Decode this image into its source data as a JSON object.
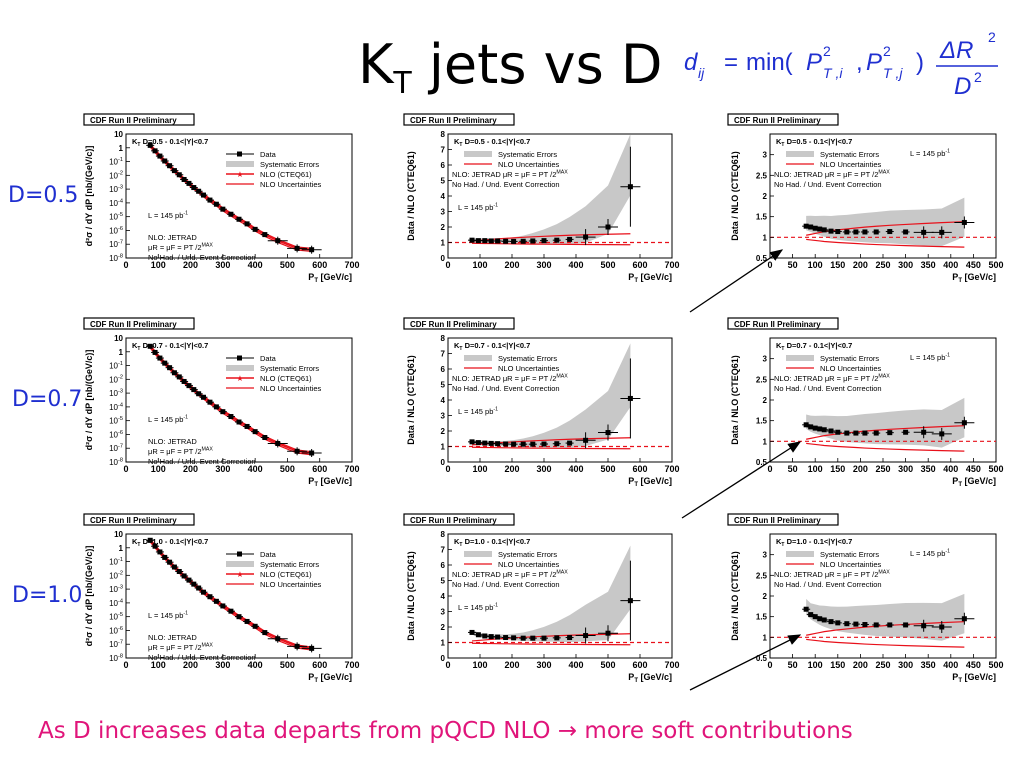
{
  "slide": {
    "title_main": "K",
    "title_sub": "T",
    "title_rest": " jets vs D",
    "formula": {
      "lhs": "d",
      "lhs_sub": "ij",
      "eq": "=",
      "fn": "min(",
      "p": "P",
      "sup2": "2",
      "sub_i": "T ,i",
      "sub_j": "T ,j",
      "comma": ",",
      "close": ")",
      "numerator": "ΔR",
      "num_sup": "2",
      "denominator": "D",
      "den_sup": "2"
    },
    "d_labels": [
      "D=0.5",
      "D=0.7",
      "D=1.0"
    ],
    "caption": "As D increases data departs from pQCD NLO → more soft contributions"
  },
  "panel_text": {
    "banner": "CDF Run II Preliminary",
    "legend_data": "Data",
    "legend_syst": "Systematic Errors",
    "legend_nlo": "NLO (CTEQ61)",
    "legend_nlo_unc": "NLO Uncertainties",
    "lumi": "L = 145 pb",
    "lumi_sup": "-1",
    "nlo_line1": "NLO: JETRAD",
    "nlo_line2": "μR = μF = P",
    "nlo_line2_sup": "MAX",
    "nlo_line2_sub": "T",
    "nlo_line2_end": "/2",
    "nohad": "No Had. / Und. Event Correction",
    "ratio_nlo_line": "NLO: JETRAD  μR = μF = P",
    "xlabel": "P",
    "xlabel_sub": "T",
    "xlabel_unit": " [GeV/c]",
    "ylabel_spectrum": "d²σ / dY dP  [nb/(GeV/c)]",
    "ylabel_spectrum_sub": "T",
    "ylabel_ratio": "Data / NLO (CTEQ61)"
  },
  "colors": {
    "title": "#000000",
    "d_label": "#1f2fd0",
    "caption": "#e0157a",
    "nlo": "#e8101a",
    "band": "#c8c8c8",
    "data": "#000000"
  },
  "chart_data": [
    {
      "row": 0,
      "col": 0,
      "type": "scatter",
      "header": "K  D=0.5 - 0.1<|Y|<0.7",
      "header_sub": "T",
      "xlabel": "P_T [GeV/c]",
      "ylabel": "d²σ/dY dP_T [nb/(GeV/c)]",
      "xlim": [
        0,
        700
      ],
      "ylim": [
        1e-08,
        10
      ],
      "log_y": true,
      "xticks": [
        0,
        100,
        200,
        300,
        400,
        500,
        600,
        700
      ],
      "yticks": [
        "10",
        "1",
        "10^-1",
        "10^-2",
        "10^-3",
        "10^-4",
        "10^-5",
        "10^-6",
        "10^-7",
        "10^-8"
      ],
      "series": [
        {
          "name": "Data",
          "x": [
            75,
            90,
            105,
            120,
            135,
            150,
            165,
            180,
            195,
            210,
            225,
            240,
            260,
            280,
            300,
            325,
            350,
            375,
            400,
            430,
            470,
            530,
            575
          ],
          "y": [
            1.5,
            0.6,
            0.25,
            0.11,
            0.05,
            0.022,
            0.011,
            0.005,
            0.0026,
            0.0013,
            0.0007,
            0.00037,
            0.00016,
            8e-05,
            3.5e-05,
            1.5e-05,
            6.5e-06,
            3e-06,
            1.2e-06,
            5e-07,
            1.8e-07,
            5e-08,
            4e-08
          ]
        }
      ]
    },
    {
      "row": 0,
      "col": 1,
      "type": "scatter",
      "header": "K  D=0.5 - 0.1<|Y|<0.7",
      "header_sub": "T",
      "xlabel": "P_T [GeV/c]",
      "ylabel": "Data / NLO (CTEQ61)",
      "xlim": [
        0,
        700
      ],
      "ylim": [
        0,
        8
      ],
      "xticks": [
        0,
        100,
        200,
        300,
        400,
        500,
        600,
        700
      ],
      "yticks": [
        0,
        1,
        2,
        3,
        4,
        5,
        6,
        7,
        8
      ],
      "series": [
        {
          "name": "Data",
          "x": [
            75,
            95,
            115,
            135,
            155,
            180,
            205,
            235,
            265,
            300,
            340,
            380,
            430,
            500,
            570
          ],
          "y": [
            1.15,
            1.12,
            1.12,
            1.1,
            1.1,
            1.08,
            1.07,
            1.08,
            1.1,
            1.12,
            1.15,
            1.2,
            1.35,
            2.0,
            4.6
          ]
        }
      ]
    },
    {
      "row": 0,
      "col": 2,
      "type": "scatter",
      "header": "K  D=0.5 - 0.1<|Y|<0.7",
      "header_sub": "T",
      "xlabel": "P_T [GeV/c]",
      "ylabel": "Data / NLO (CTEQ61)",
      "xlim": [
        0,
        500
      ],
      "ylim": [
        0.5,
        3.5
      ],
      "xticks": [
        0,
        50,
        100,
        150,
        200,
        250,
        300,
        350,
        400,
        450,
        500
      ],
      "yticks": [
        0.5,
        1,
        1.5,
        2,
        2.5,
        3
      ],
      "series": [
        {
          "name": "Data",
          "x": [
            80,
            90,
            100,
            110,
            120,
            135,
            150,
            170,
            190,
            210,
            235,
            265,
            300,
            340,
            380,
            430
          ],
          "y": [
            1.27,
            1.25,
            1.22,
            1.2,
            1.18,
            1.15,
            1.14,
            1.13,
            1.13,
            1.13,
            1.13,
            1.14,
            1.13,
            1.12,
            1.12,
            1.36
          ]
        }
      ]
    },
    {
      "row": 1,
      "col": 0,
      "type": "scatter",
      "header": "K  D=0.7 - 0.1<|Y|<0.7",
      "header_sub": "T",
      "xlabel": "P_T [GeV/c]",
      "ylabel": "d²σ/dY dP_T [nb/(GeV/c)]",
      "xlim": [
        0,
        700
      ],
      "ylim": [
        1e-08,
        10
      ],
      "log_y": true,
      "xticks": [
        0,
        100,
        200,
        300,
        400,
        500,
        600,
        700
      ],
      "yticks": [
        "10",
        "1",
        "10^-1",
        "10^-2",
        "10^-3",
        "10^-4",
        "10^-5",
        "10^-6",
        "10^-7",
        "10^-8"
      ],
      "series": [
        {
          "name": "Data",
          "x": [
            75,
            90,
            105,
            120,
            135,
            150,
            165,
            180,
            195,
            210,
            225,
            240,
            260,
            280,
            300,
            325,
            350,
            375,
            400,
            430,
            470,
            530,
            575
          ],
          "y": [
            2.5,
            0.9,
            0.35,
            0.15,
            0.07,
            0.03,
            0.015,
            0.007,
            0.0035,
            0.0018,
            0.0009,
            0.0005,
            0.00022,
            0.0001,
            4.5e-05,
            2e-05,
            8e-06,
            3.8e-06,
            1.6e-06,
            6e-07,
            2.2e-07,
            6e-08,
            4.5e-08
          ]
        }
      ]
    },
    {
      "row": 1,
      "col": 1,
      "type": "scatter",
      "header": "K  D=0.7 - 0.1<|Y|<0.7",
      "header_sub": "T",
      "xlabel": "P_T [GeV/c]",
      "ylabel": "Data / NLO (CTEQ61)",
      "xlim": [
        0,
        700
      ],
      "ylim": [
        0,
        8
      ],
      "xticks": [
        0,
        100,
        200,
        300,
        400,
        500,
        600,
        700
      ],
      "yticks": [
        0,
        1,
        2,
        3,
        4,
        5,
        6,
        7,
        8
      ],
      "series": [
        {
          "name": "Data",
          "x": [
            75,
            95,
            115,
            135,
            155,
            180,
            205,
            235,
            265,
            300,
            340,
            380,
            430,
            500,
            570
          ],
          "y": [
            1.3,
            1.25,
            1.22,
            1.2,
            1.18,
            1.16,
            1.15,
            1.15,
            1.15,
            1.16,
            1.18,
            1.22,
            1.4,
            1.9,
            4.1
          ]
        }
      ]
    },
    {
      "row": 1,
      "col": 2,
      "type": "scatter",
      "header": "K  D=0.7 - 0.1<|Y|<0.7",
      "header_sub": "T",
      "xlabel": "P_T [GeV/c]",
      "ylabel": "Data / NLO (CTEQ61)",
      "xlim": [
        0,
        500
      ],
      "ylim": [
        0.5,
        3.5
      ],
      "xticks": [
        0,
        50,
        100,
        150,
        200,
        250,
        300,
        350,
        400,
        450,
        500
      ],
      "yticks": [
        0.5,
        1,
        1.5,
        2,
        2.5,
        3
      ],
      "series": [
        {
          "name": "Data",
          "x": [
            80,
            90,
            100,
            110,
            120,
            135,
            150,
            170,
            190,
            210,
            235,
            265,
            300,
            340,
            380,
            430
          ],
          "y": [
            1.4,
            1.35,
            1.32,
            1.3,
            1.28,
            1.25,
            1.22,
            1.2,
            1.2,
            1.2,
            1.2,
            1.21,
            1.22,
            1.22,
            1.18,
            1.45
          ]
        }
      ]
    },
    {
      "row": 2,
      "col": 0,
      "type": "scatter",
      "header": "K  D=1.0 - 0.1<|Y|<0.7",
      "header_sub": "T",
      "xlabel": "P_T [GeV/c]",
      "ylabel": "d²σ/dY dP_T [nb/(GeV/c)]",
      "xlim": [
        0,
        700
      ],
      "ylim": [
        1e-08,
        10
      ],
      "log_y": true,
      "xticks": [
        0,
        100,
        200,
        300,
        400,
        500,
        600,
        700
      ],
      "yticks": [
        "10",
        "1",
        "10^-1",
        "10^-2",
        "10^-3",
        "10^-4",
        "10^-5",
        "10^-6",
        "10^-7",
        "10^-8"
      ],
      "series": [
        {
          "name": "Data",
          "x": [
            75,
            90,
            105,
            120,
            135,
            150,
            165,
            180,
            195,
            210,
            225,
            240,
            260,
            280,
            300,
            325,
            350,
            375,
            400,
            430,
            470,
            530,
            575
          ],
          "y": [
            3.5,
            1.3,
            0.5,
            0.2,
            0.09,
            0.04,
            0.019,
            0.009,
            0.0045,
            0.0023,
            0.0012,
            0.0006,
            0.00028,
            0.00013,
            6e-05,
            2.5e-05,
            1e-05,
            4.5e-06,
            2e-06,
            7e-07,
            2.5e-07,
            7e-08,
            5e-08
          ]
        }
      ]
    },
    {
      "row": 2,
      "col": 1,
      "type": "scatter",
      "header": "K  D=1.0 - 0.1<|Y|<0.7",
      "header_sub": "T",
      "xlabel": "P_T [GeV/c]",
      "ylabel": "Data / NLO (CTEQ61)",
      "xlim": [
        0,
        700
      ],
      "ylim": [
        0,
        8
      ],
      "xticks": [
        0,
        100,
        200,
        300,
        400,
        500,
        600,
        700
      ],
      "yticks": [
        0,
        1,
        2,
        3,
        4,
        5,
        6,
        7,
        8
      ],
      "series": [
        {
          "name": "Data",
          "x": [
            75,
            95,
            115,
            135,
            155,
            180,
            205,
            235,
            265,
            300,
            340,
            380,
            430,
            500,
            570
          ],
          "y": [
            1.65,
            1.5,
            1.42,
            1.38,
            1.35,
            1.32,
            1.3,
            1.28,
            1.28,
            1.28,
            1.3,
            1.32,
            1.45,
            1.6,
            3.7
          ]
        }
      ]
    },
    {
      "row": 2,
      "col": 2,
      "type": "scatter",
      "header": "K  D=1.0 - 0.1<|Y|<0.7",
      "header_sub": "T",
      "xlabel": "P_T [GeV/c]",
      "ylabel": "Data / NLO (CTEQ61)",
      "xlim": [
        0,
        500
      ],
      "ylim": [
        0.5,
        3.5
      ],
      "xticks": [
        0,
        50,
        100,
        150,
        200,
        250,
        300,
        350,
        400,
        450,
        500
      ],
      "yticks": [
        0.5,
        1,
        1.5,
        2,
        2.5,
        3
      ],
      "series": [
        {
          "name": "Data",
          "x": [
            80,
            90,
            100,
            110,
            120,
            135,
            150,
            170,
            190,
            210,
            235,
            265,
            300,
            340,
            380,
            430
          ],
          "y": [
            1.68,
            1.55,
            1.5,
            1.45,
            1.42,
            1.38,
            1.35,
            1.33,
            1.32,
            1.31,
            1.3,
            1.3,
            1.3,
            1.28,
            1.25,
            1.45
          ]
        }
      ]
    }
  ]
}
